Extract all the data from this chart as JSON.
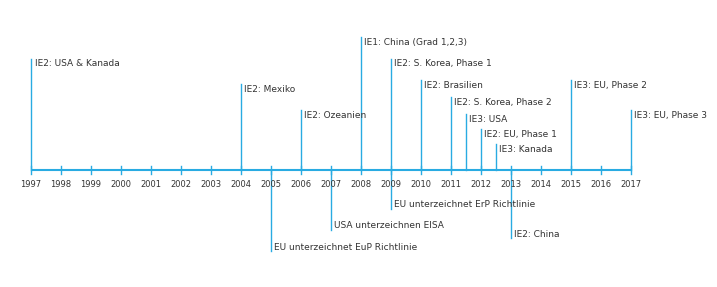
{
  "year_start": 1997,
  "year_end": 2017,
  "timeline_color": "#29ABE2",
  "text_color": "#333333",
  "fontsize": 6.5,
  "above_events": [
    {
      "year": 1997,
      "label": "IE2: USA & Kanada",
      "height": 5.2
    },
    {
      "year": 2004,
      "label": "IE2: Mexiko",
      "height": 4.0
    },
    {
      "year": 2006,
      "label": "IE2: Ozeanien",
      "height": 2.8
    },
    {
      "year": 2008,
      "label": "IE1: China (Grad 1,2,3)",
      "height": 6.2
    },
    {
      "year": 2009,
      "label": "IE2: S. Korea, Phase 1",
      "height": 5.2
    },
    {
      "year": 2010,
      "label": "IE2: Brasilien",
      "height": 4.2
    },
    {
      "year": 2011,
      "label": "IE2: S. Korea, Phase 2",
      "height": 3.4
    },
    {
      "year": 2011.5,
      "label": "IE3: USA",
      "height": 2.6
    },
    {
      "year": 2012,
      "label": "IE2: EU, Phase 1",
      "height": 1.9
    },
    {
      "year": 2012.5,
      "label": "IE3: Kanada",
      "height": 1.2
    },
    {
      "year": 2015,
      "label": "IE3: EU, Phase 2",
      "height": 4.2
    },
    {
      "year": 2017,
      "label": "IE3: EU, Phase 3",
      "height": 2.8
    }
  ],
  "below_events": [
    {
      "year": 2005,
      "label": "EU unterzeichnet EuP Richtlinie",
      "depth": -3.8
    },
    {
      "year": 2007,
      "label": "USA unterzeichnen EISA",
      "depth": -2.8
    },
    {
      "year": 2009,
      "label": "EU unterzeichnet ErP Richtlinie",
      "depth": -1.8
    },
    {
      "year": 2013,
      "label": "IE2: China",
      "depth": -3.2
    }
  ],
  "xlim_left": 1996.3,
  "xlim_right": 2018.2,
  "ylim_bottom": -5.0,
  "ylim_top": 7.5
}
